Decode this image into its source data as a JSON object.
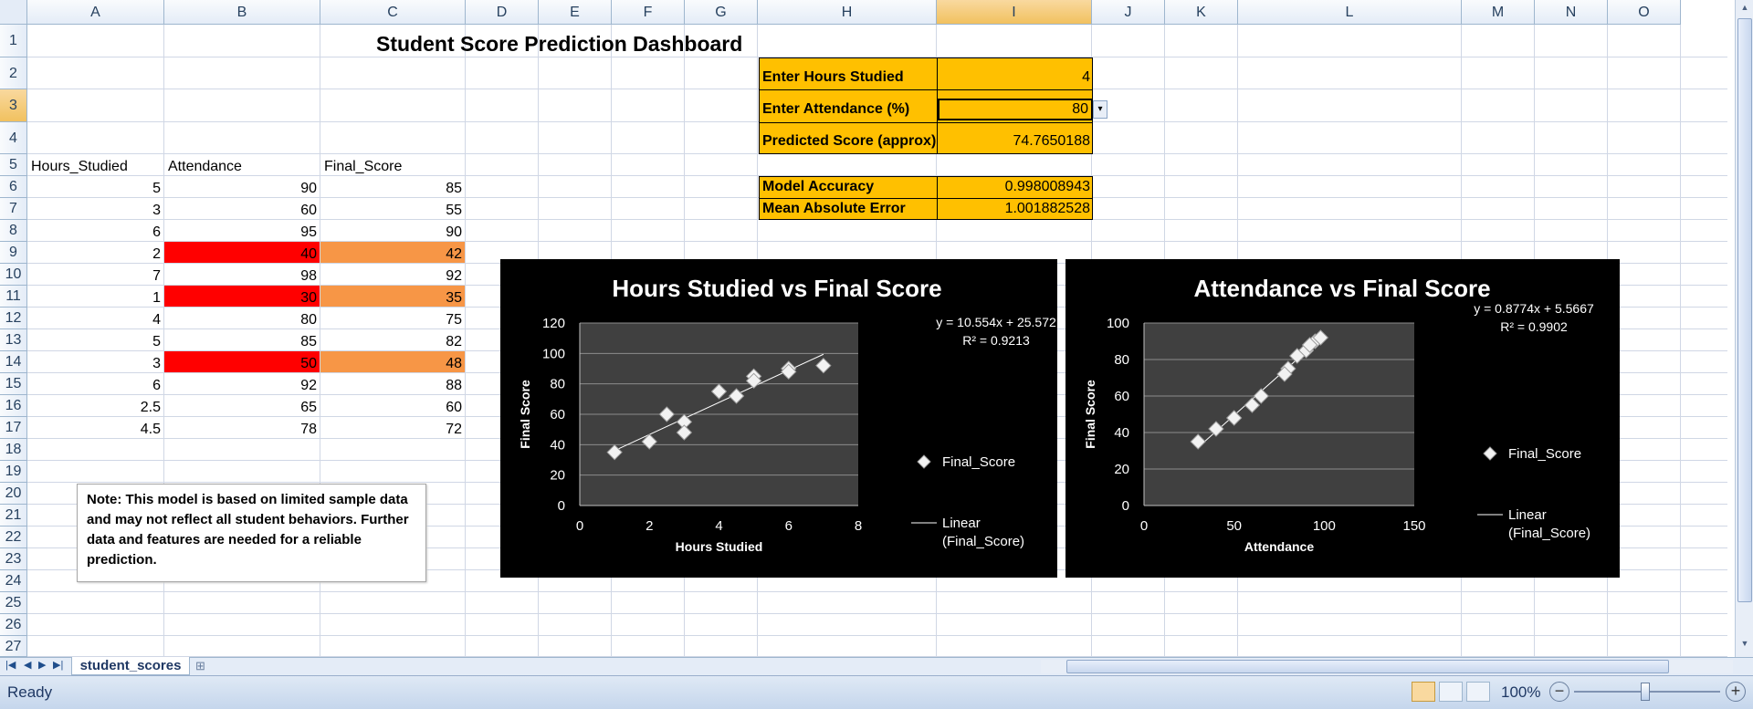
{
  "columns": [
    "A",
    "B",
    "C",
    "D",
    "E",
    "F",
    "G",
    "H",
    "I",
    "J",
    "K",
    "L",
    "M",
    "N",
    "O"
  ],
  "rows": [
    "1",
    "2",
    "3",
    "4",
    "5",
    "6",
    "7",
    "8",
    "9",
    "10",
    "11",
    "12",
    "13",
    "14",
    "15",
    "16",
    "17",
    "18",
    "19",
    "20",
    "21",
    "22",
    "23",
    "24",
    "25",
    "26",
    "27"
  ],
  "title": "Student Score Prediction Dashboard",
  "table": {
    "headers": [
      "Hours_Studied",
      "Attendance",
      "Final_Score"
    ],
    "rows": [
      [
        "5",
        "90",
        "85"
      ],
      [
        "3",
        "60",
        "55"
      ],
      [
        "6",
        "95",
        "90"
      ],
      [
        "2",
        "40",
        "42"
      ],
      [
        "7",
        "98",
        "92"
      ],
      [
        "1",
        "30",
        "35"
      ],
      [
        "4",
        "80",
        "75"
      ],
      [
        "5",
        "85",
        "82"
      ],
      [
        "3",
        "50",
        "48"
      ],
      [
        "6",
        "92",
        "88"
      ],
      [
        "2.5",
        "65",
        "60"
      ],
      [
        "4.5",
        "78",
        "72"
      ]
    ]
  },
  "inputs": {
    "hours_label": "Enter Hours Studied",
    "hours_value": "4",
    "attendance_label": "Enter Attendance (%)",
    "attendance_value": "80",
    "predicted_label": "Predicted Score (approx)",
    "predicted_value": "74.7650188",
    "accuracy_label": "Model Accuracy",
    "accuracy_value": "0.998008943",
    "mae_label": "Mean Absolute Error",
    "mae_value": "1.001882528"
  },
  "note": "Note: This model is based on limited sample data and may not reflect all student behaviors. Further data and features are needed for a reliable prediction.",
  "sheet_tab": "student_scores",
  "status": {
    "ready": "Ready",
    "zoom": "100%"
  },
  "colors": {
    "red": "#ff0000",
    "orange_fill": "#f79646",
    "gold": "#ffc000"
  },
  "chart_data": [
    {
      "type": "scatter",
      "title": "Hours Studied vs Final Score",
      "xlabel": "Hours Studied",
      "ylabel": "Final Score",
      "xlim": [
        0,
        8
      ],
      "ylim": [
        0,
        120
      ],
      "xticks": [
        "0",
        "2",
        "4",
        "6",
        "8"
      ],
      "yticks": [
        "0",
        "20",
        "40",
        "60",
        "80",
        "100",
        "120"
      ],
      "x": [
        5,
        3,
        6,
        2,
        7,
        1,
        4,
        5,
        3,
        6,
        2.5,
        4.5
      ],
      "y": [
        85,
        55,
        90,
        42,
        92,
        35,
        75,
        82,
        48,
        88,
        60,
        72
      ],
      "trend": {
        "slope": 10.554,
        "intercept": 25.572
      },
      "equation": "y = 10.554x + 25.572",
      "r2": "R² = 0.9213",
      "legend": [
        "Final_Score",
        "Linear",
        "(Final_Score)"
      ]
    },
    {
      "type": "scatter",
      "title": "Attendance vs Final Score",
      "xlabel": "Attendance",
      "ylabel": "Final Score",
      "xlim": [
        0,
        150
      ],
      "ylim": [
        0,
        100
      ],
      "xticks": [
        "0",
        "50",
        "100",
        "150"
      ],
      "yticks": [
        "0",
        "20",
        "40",
        "60",
        "80",
        "100"
      ],
      "x": [
        90,
        60,
        95,
        40,
        98,
        30,
        80,
        85,
        50,
        92,
        65,
        78
      ],
      "y": [
        85,
        55,
        90,
        42,
        92,
        35,
        75,
        82,
        48,
        88,
        60,
        72
      ],
      "trend": {
        "slope": 0.8774,
        "intercept": 5.5667
      },
      "equation": "y = 0.8774x + 5.5667",
      "r2": "R² = 0.9902",
      "legend": [
        "Final_Score",
        "Linear",
        "(Final_Score)"
      ]
    }
  ]
}
